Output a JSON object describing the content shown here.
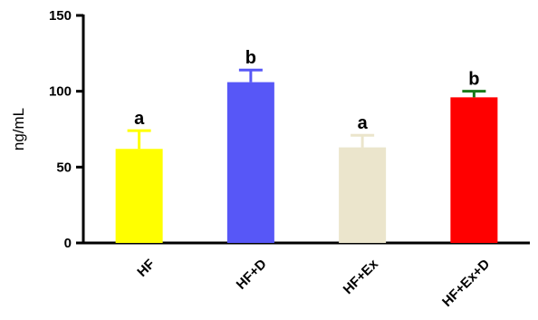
{
  "chart_data": {
    "type": "bar",
    "title": "",
    "xlabel": "",
    "ylabel": "ng/mL",
    "ylim": [
      0,
      150
    ],
    "yticks": [
      0,
      50,
      100,
      150
    ],
    "grid": false,
    "categories": [
      "HF",
      "HF+D",
      "HF+Ex",
      "HF+Ex+D"
    ],
    "values": [
      62,
      106,
      63,
      96
    ],
    "error_upper": [
      74,
      114,
      71,
      100
    ],
    "significance_labels": [
      "a",
      "b",
      "a",
      "b"
    ],
    "colors": [
      "#ffff00",
      "#5757f7",
      "#ebe5cc",
      "#ff0000"
    ],
    "error_colors": [
      "#ffff00",
      "#5757f7",
      "#ebe5cc",
      "#1a7a1a"
    ]
  }
}
